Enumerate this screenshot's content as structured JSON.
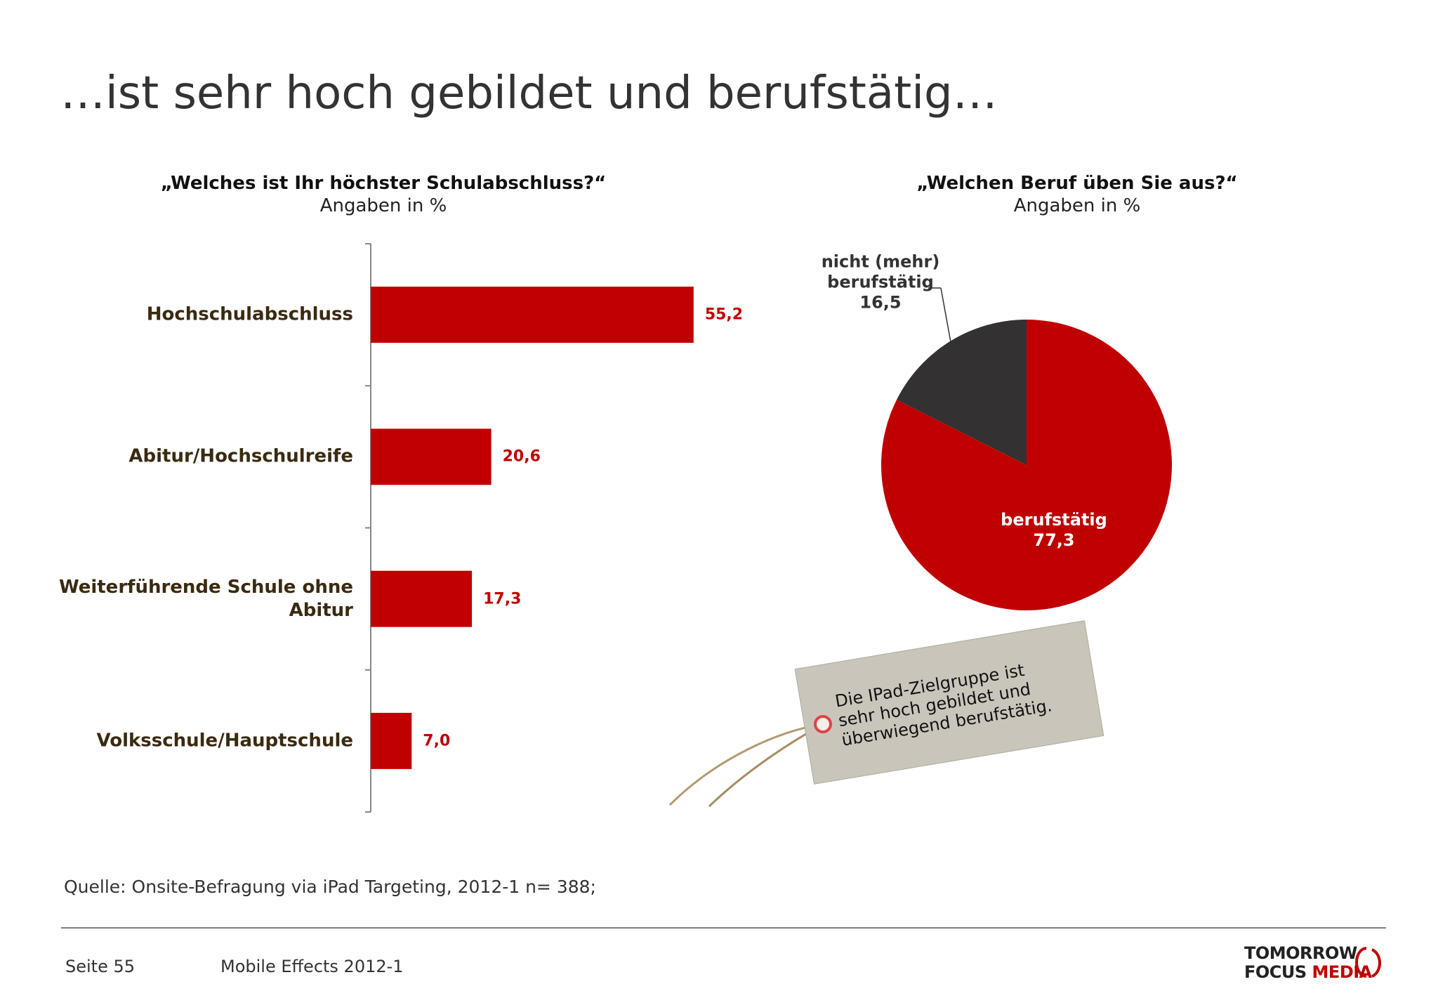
{
  "title": "…ist sehr hoch gebildet und berufstätig…",
  "chart_data": [
    {
      "type": "hbar",
      "title": "„Welches ist Ihr höchster Schulabschluss?“",
      "subtitle": "Angaben in %",
      "categories": [
        "Hochschulabschluss",
        "Abitur/Hochschulreife",
        "Weiterführende Schule ohne Abitur",
        "Volksschule/Hauptschule"
      ],
      "values": [
        55.2,
        20.6,
        17.3,
        7.0
      ],
      "value_labels": [
        "55,2",
        "20,6",
        "17,3",
        "7,0"
      ],
      "color": "#c00000",
      "xlim": [
        0,
        100
      ]
    },
    {
      "type": "pie",
      "title": "„Welchen Beruf üben Sie aus?“",
      "subtitle": "Angaben in %",
      "categories": [
        "berufstätig",
        "nicht (mehr) berufstätig"
      ],
      "values": [
        77.3,
        16.5
      ],
      "value_labels": [
        "77,3",
        "16,5"
      ],
      "colors": [
        "#c00000",
        "#333132"
      ]
    }
  ],
  "note": "Die IPad-Zielgruppe ist sehr hoch gebildet und überwiegend berufstätig.",
  "source": "Quelle: Onsite-Befragung via iPad Targeting, 2012-1 n= 388;",
  "footer": {
    "page": "Seite 55",
    "report": "Mobile Effects 2012-1"
  },
  "logo": {
    "top": "TOMORROW",
    "left": "FOCUS",
    "right": "MEDIA"
  }
}
